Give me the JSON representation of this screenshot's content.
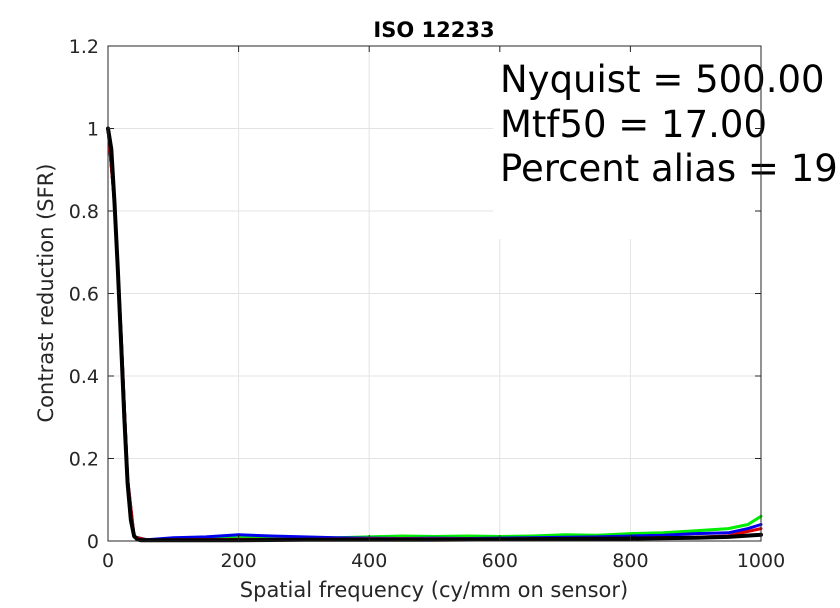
{
  "chart_data": {
    "type": "line",
    "title": "ISO 12233",
    "xlabel": "Spatial frequency (cy/mm on sensor)",
    "ylabel": "Contrast reduction (SFR)",
    "xlim": [
      0,
      1000
    ],
    "ylim": [
      0,
      1.2
    ],
    "x_ticks": [
      "0",
      "200",
      "400",
      "600",
      "800",
      "1000"
    ],
    "y_ticks": [
      "0",
      "0.2",
      "0.4",
      "0.6",
      "0.8",
      "1",
      "1.2"
    ],
    "x_tick_values": [
      0,
      200,
      400,
      600,
      800,
      1000
    ],
    "y_tick_values": [
      0,
      0.2,
      0.4,
      0.6,
      0.8,
      1.0,
      1.2
    ],
    "grid": true,
    "annotation_lines": [
      "Nyquist = 500.00",
      "Mtf50 = 17.00",
      "Percent alias = 19"
    ],
    "series": [
      {
        "color": "#00ee00",
        "x": [
          0,
          10,
          20,
          30,
          40,
          60,
          100,
          150,
          200,
          250,
          300,
          350,
          400,
          450,
          500,
          550,
          600,
          650,
          700,
          750,
          800,
          850,
          900,
          950,
          980,
          1000
        ],
        "y": [
          1.0,
          0.82,
          0.5,
          0.15,
          0.01,
          0.003,
          0.004,
          0.006,
          0.008,
          0.007,
          0.009,
          0.008,
          0.01,
          0.012,
          0.011,
          0.012,
          0.011,
          0.012,
          0.015,
          0.014,
          0.018,
          0.02,
          0.025,
          0.03,
          0.04,
          0.06
        ]
      },
      {
        "color": "#0000ee",
        "x": [
          0,
          10,
          20,
          30,
          40,
          60,
          100,
          150,
          200,
          250,
          300,
          350,
          400,
          450,
          500,
          550,
          600,
          650,
          700,
          750,
          800,
          850,
          900,
          950,
          980,
          1000
        ],
        "y": [
          1.0,
          0.82,
          0.5,
          0.15,
          0.01,
          0.003,
          0.008,
          0.01,
          0.015,
          0.012,
          0.01,
          0.008,
          0.007,
          0.006,
          0.007,
          0.006,
          0.007,
          0.008,
          0.009,
          0.01,
          0.012,
          0.014,
          0.018,
          0.02,
          0.03,
          0.04
        ]
      },
      {
        "color": "#dd0000",
        "x": [
          0,
          10,
          20,
          30,
          40,
          60,
          100,
          200,
          300,
          400,
          500,
          600,
          700,
          800,
          900,
          950,
          970,
          1000
        ],
        "y": [
          1.0,
          0.82,
          0.5,
          0.15,
          0.01,
          0.002,
          0.003,
          0.004,
          0.004,
          0.005,
          0.005,
          0.005,
          0.006,
          0.007,
          0.009,
          0.012,
          0.02,
          0.03
        ]
      },
      {
        "color": "#000000",
        "x": [
          0,
          5,
          10,
          15,
          20,
          25,
          30,
          35,
          40,
          45,
          50,
          100,
          200,
          300,
          400,
          500,
          600,
          700,
          800,
          900,
          950,
          1000
        ],
        "y": [
          1.0,
          0.95,
          0.82,
          0.66,
          0.48,
          0.3,
          0.14,
          0.05,
          0.012,
          0.004,
          0.002,
          0.002,
          0.002,
          0.003,
          0.003,
          0.003,
          0.004,
          0.005,
          0.006,
          0.008,
          0.01,
          0.015
        ]
      }
    ]
  }
}
